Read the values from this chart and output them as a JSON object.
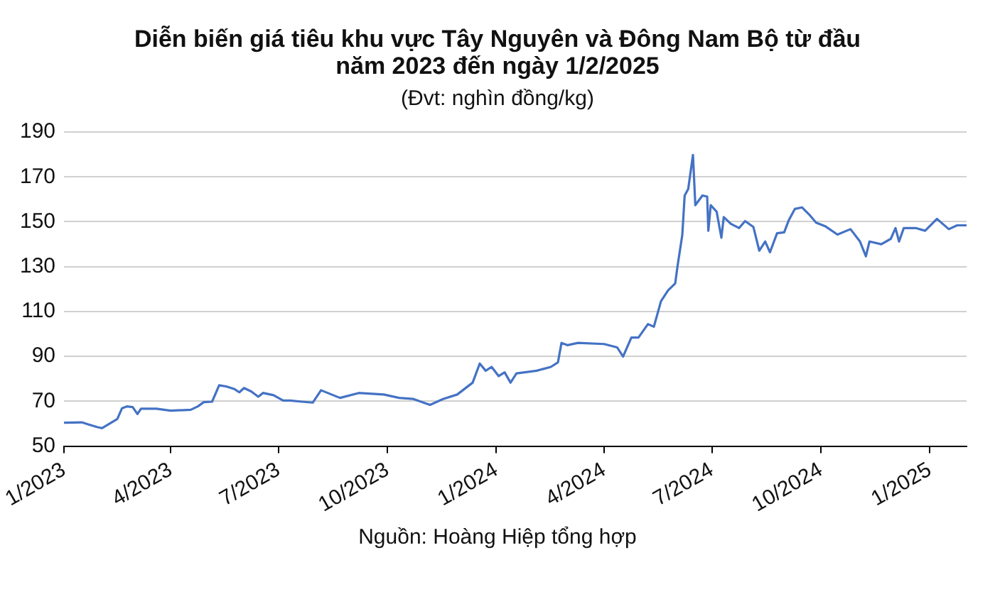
{
  "chart_data": {
    "type": "line",
    "title": "Diễn biến giá tiêu khu vực Tây Nguyên và Đông Nam Bộ từ đầu năm 2023 đến ngày 1/2/2025",
    "subtitle": "(Đvt: nghìn đồng/kg)",
    "annotations": [
      "Nguồn: Hoàng Hiệp tổng hợp"
    ],
    "x": [
      "2023-01-01",
      "2023-01-16",
      "2023-01-22",
      "2023-01-29",
      "2023-02-02",
      "2023-02-15",
      "2023-02-19",
      "2023-02-23",
      "2023-02-28",
      "2023-03-04",
      "2023-03-07",
      "2023-03-20",
      "2023-04-01",
      "2023-04-18",
      "2023-04-24",
      "2023-04-29",
      "2023-05-06",
      "2023-05-12",
      "2023-05-18",
      "2023-05-25",
      "2023-05-29",
      "2023-06-02",
      "2023-06-08",
      "2023-06-14",
      "2023-06-18",
      "2023-06-27",
      "2023-07-05",
      "2023-07-11",
      "2023-07-21",
      "2023-07-30",
      "2023-08-06",
      "2023-08-22",
      "2023-09-07",
      "2023-09-28",
      "2023-10-11",
      "2023-10-23",
      "2023-11-06",
      "2023-11-17",
      "2023-11-29",
      "2023-12-12",
      "2023-12-18",
      "2023-12-23",
      "2023-12-28",
      "2024-01-03",
      "2024-01-08",
      "2024-01-13",
      "2024-01-18",
      "2024-02-04",
      "2024-02-16",
      "2024-02-22",
      "2024-02-25",
      "2024-03-01",
      "2024-03-10",
      "2024-04-01",
      "2024-04-12",
      "2024-04-17",
      "2024-04-24",
      "2024-04-30",
      "2024-05-08",
      "2024-05-13",
      "2024-05-19",
      "2024-05-25",
      "2024-05-31",
      "2024-06-02",
      "2024-06-06",
      "2024-06-08",
      "2024-06-11",
      "2024-06-15",
      "2024-06-17",
      "2024-06-23",
      "2024-06-27",
      "2024-06-28",
      "2024-06-30",
      "2024-07-05",
      "2024-07-09",
      "2024-07-11",
      "2024-07-17",
      "2024-07-24",
      "2024-07-29",
      "2024-08-05",
      "2024-08-10",
      "2024-08-15",
      "2024-08-19",
      "2024-08-25",
      "2024-08-31",
      "2024-09-04",
      "2024-09-09",
      "2024-09-15",
      "2024-09-21",
      "2024-09-27",
      "2024-10-05",
      "2024-10-15",
      "2024-10-26",
      "2024-11-03",
      "2024-11-08",
      "2024-11-11",
      "2024-11-21",
      "2024-11-29",
      "2024-12-03",
      "2024-12-06",
      "2024-12-10",
      "2024-12-20",
      "2024-12-28",
      "2025-01-07",
      "2025-01-17",
      "2025-01-24",
      "2025-02-01"
    ],
    "values": [
      60.4,
      60.6,
      59.6,
      58.5,
      58,
      62.1,
      66.9,
      67.7,
      67.4,
      64.3,
      66.7,
      66.7,
      65.8,
      66.2,
      67.7,
      69.6,
      69.8,
      77.1,
      76.6,
      75.4,
      74,
      75.9,
      74.4,
      72,
      73.7,
      72.7,
      70.3,
      70.3,
      69.8,
      69.4,
      74.9,
      71.5,
      73.7,
      73,
      71.5,
      71,
      68.4,
      71,
      73,
      78.3,
      86.8,
      83.6,
      85.3,
      81.2,
      82.9,
      78.3,
      82.4,
      83.6,
      85.3,
      87.3,
      96,
      95,
      96,
      95.5,
      94,
      89.9,
      98.4,
      98.4,
      104.4,
      103.2,
      114.6,
      119.4,
      122.5,
      130.3,
      144.1,
      161.7,
      164.6,
      179.8,
      157.4,
      161.7,
      161.2,
      146,
      157.4,
      154.5,
      142.9,
      152.1,
      149.1,
      147.2,
      150.3,
      147.7,
      137.1,
      141.2,
      136.4,
      144.9,
      145.3,
      150.8,
      155.7,
      156.4,
      153.3,
      149.6,
      147.9,
      144.3,
      146.7,
      141.2,
      134.6,
      141.2,
      140,
      142.4,
      147.2,
      141.2,
      147.2,
      147.2,
      146,
      151.3,
      146.7,
      148.4,
      148.4
    ],
    "color": "#4472c4",
    "marker": "none",
    "line_style": "solid",
    "xlim": [
      "2023-01-01",
      "2025-02-01"
    ],
    "xticks": [
      {
        "value": "2023-01-01",
        "label": "1/2023"
      },
      {
        "value": "2023-04-01",
        "label": "4/2023"
      },
      {
        "value": "2023-07-01",
        "label": "7/2023"
      },
      {
        "value": "2023-10-01",
        "label": "10/2023"
      },
      {
        "value": "2024-01-01",
        "label": "1/2024"
      },
      {
        "value": "2024-04-01",
        "label": "4/2024"
      },
      {
        "value": "2024-07-01",
        "label": "7/2024"
      },
      {
        "value": "2024-10-01",
        "label": "10/2024"
      },
      {
        "value": "2025-01-01",
        "label": "1/2025"
      }
    ],
    "ylim": [
      50,
      190
    ],
    "yticks": [
      50,
      70,
      90,
      110,
      130,
      150,
      170,
      190
    ],
    "grid": "y",
    "legend": false
  }
}
